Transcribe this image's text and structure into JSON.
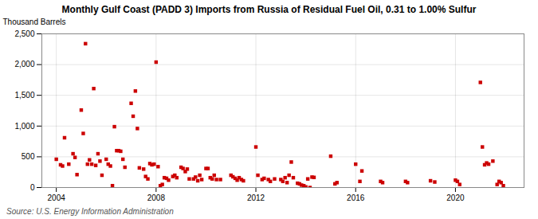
{
  "chart_data": {
    "type": "scatter",
    "title": "Monthly Gulf Coast (PADD 3) Imports from Russia of Residual Fuel Oil, 0.31 to 1.00% Sulfur",
    "ylabel": "Thousand Barrels",
    "source": "Source: U.S. Energy Information Administration",
    "color": "#cc0000",
    "marker": "square",
    "grid": true,
    "xlim": [
      2003.42,
      2022.75
    ],
    "xticks": [
      2004,
      2008,
      2012,
      2016,
      2020
    ],
    "ylim": [
      0,
      2500
    ],
    "yticks": [
      0,
      500,
      {
        "value": 1000,
        "label": "1,000"
      },
      {
        "value": 1500,
        "label": "1,500"
      },
      {
        "value": 2000,
        "label": "2,000"
      },
      {
        "value": 2500,
        "label": "2,500"
      }
    ],
    "x": [
      2004.0,
      2004.17,
      2004.25,
      2004.33,
      2004.5,
      2004.67,
      2004.75,
      2004.83,
      2005.0,
      2005.08,
      2005.17,
      2005.25,
      2005.33,
      2005.42,
      2005.5,
      2005.58,
      2005.67,
      2005.75,
      2005.83,
      2006.0,
      2006.08,
      2006.17,
      2006.25,
      2006.33,
      2006.42,
      2006.5,
      2006.58,
      2006.67,
      2006.75,
      2007.0,
      2007.08,
      2007.17,
      2007.25,
      2007.33,
      2007.5,
      2007.58,
      2007.67,
      2007.75,
      2007.83,
      2007.92,
      2008.0,
      2008.08,
      2008.17,
      2008.25,
      2008.33,
      2008.42,
      2008.5,
      2008.67,
      2008.75,
      2008.83,
      2009.0,
      2009.08,
      2009.17,
      2009.25,
      2009.33,
      2009.5,
      2009.58,
      2009.67,
      2009.75,
      2009.83,
      2010.0,
      2010.08,
      2010.17,
      2010.25,
      2010.33,
      2010.42,
      2010.58,
      2011.0,
      2011.08,
      2011.17,
      2011.25,
      2011.33,
      2011.42,
      2011.5,
      2012.0,
      2012.08,
      2012.25,
      2012.33,
      2012.5,
      2012.58,
      2012.75,
      2013.0,
      2013.08,
      2013.17,
      2013.25,
      2013.33,
      2013.42,
      2013.5,
      2013.67,
      2013.75,
      2013.83,
      2013.92,
      2014.0,
      2014.08,
      2014.17,
      2014.25,
      2014.33,
      2015.0,
      2015.17,
      2015.25,
      2016.0,
      2016.17,
      2016.25,
      2017.0,
      2017.08,
      2018.0,
      2018.08,
      2019.0,
      2019.17,
      2020.0,
      2020.08,
      2020.17,
      2021.0,
      2021.08,
      2021.17,
      2021.25,
      2021.33,
      2021.5,
      2021.67,
      2021.75,
      2021.83,
      2021.92
    ],
    "values": [
      460,
      370,
      350,
      810,
      380,
      550,
      490,
      210,
      1260,
      880,
      2340,
      380,
      450,
      380,
      1610,
      360,
      550,
      430,
      200,
      460,
      380,
      350,
      30,
      990,
      600,
      600,
      590,
      460,
      330,
      1370,
      1160,
      1570,
      960,
      320,
      300,
      180,
      140,
      390,
      370,
      380,
      2040,
      340,
      30,
      50,
      160,
      150,
      120,
      180,
      200,
      160,
      330,
      310,
      260,
      300,
      140,
      140,
      170,
      110,
      200,
      130,
      310,
      310,
      160,
      140,
      200,
      130,
      130,
      200,
      175,
      150,
      120,
      160,
      130,
      110,
      660,
      200,
      130,
      150,
      130,
      100,
      140,
      130,
      100,
      160,
      80,
      200,
      415,
      160,
      70,
      60,
      40,
      30,
      10,
      140,
      0,
      170,
      165,
      510,
      60,
      80,
      380,
      100,
      270,
      100,
      80,
      100,
      80,
      110,
      90,
      120,
      100,
      50,
      1710,
      660,
      370,
      400,
      380,
      430,
      50,
      100,
      80,
      30
    ]
  }
}
